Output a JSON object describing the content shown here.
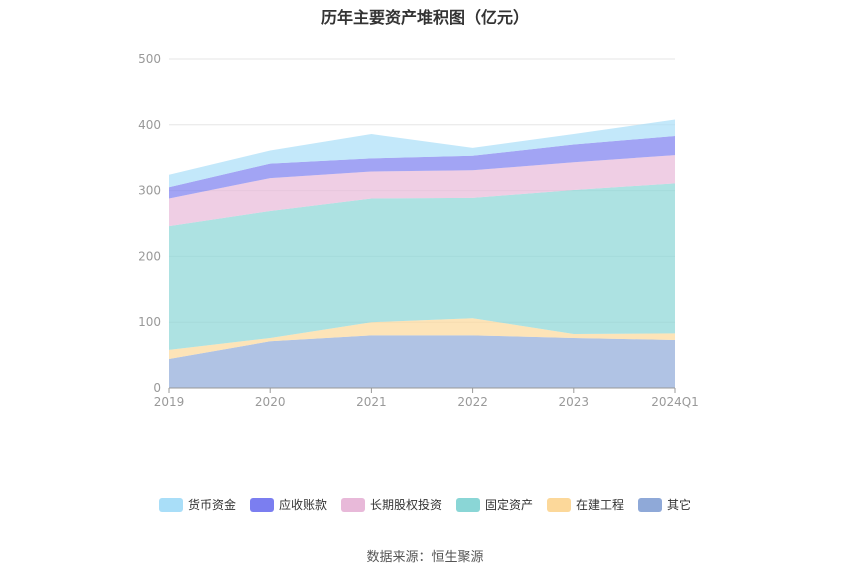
{
  "chart_data": {
    "type": "area",
    "stacked": true,
    "title": "历年主要资产堆积图（亿元）",
    "categories": [
      "2019",
      "2020",
      "2021",
      "2022",
      "2023",
      "2024Q1"
    ],
    "ylim": [
      0,
      500
    ],
    "yticks": [
      0,
      100,
      200,
      300,
      400,
      500
    ],
    "grid": true,
    "legend_position": "bottom",
    "series": [
      {
        "name": "其它",
        "color": "#8fa9d8",
        "values": [
          44,
          71,
          80,
          80,
          76,
          73
        ]
      },
      {
        "name": "在建工程",
        "color": "#fcd89a",
        "values": [
          14,
          5,
          20,
          26,
          6,
          10
        ]
      },
      {
        "name": "固定资产",
        "color": "#8ad6d6",
        "values": [
          188,
          193,
          188,
          183,
          219,
          228
        ]
      },
      {
        "name": "长期股权投资",
        "color": "#e8b9d9",
        "values": [
          42,
          50,
          41,
          42,
          42,
          43
        ]
      },
      {
        "name": "应收账款",
        "color": "#7b7ef0",
        "values": [
          17,
          22,
          20,
          22,
          27,
          29
        ]
      },
      {
        "name": "货币资金",
        "color": "#a9def8",
        "values": [
          19,
          20,
          37,
          12,
          16,
          25
        ]
      }
    ],
    "legend_order": [
      "货币资金",
      "应收账款",
      "长期股权投资",
      "固定资产",
      "在建工程",
      "其它"
    ]
  },
  "source": "数据来源：恒生聚源"
}
